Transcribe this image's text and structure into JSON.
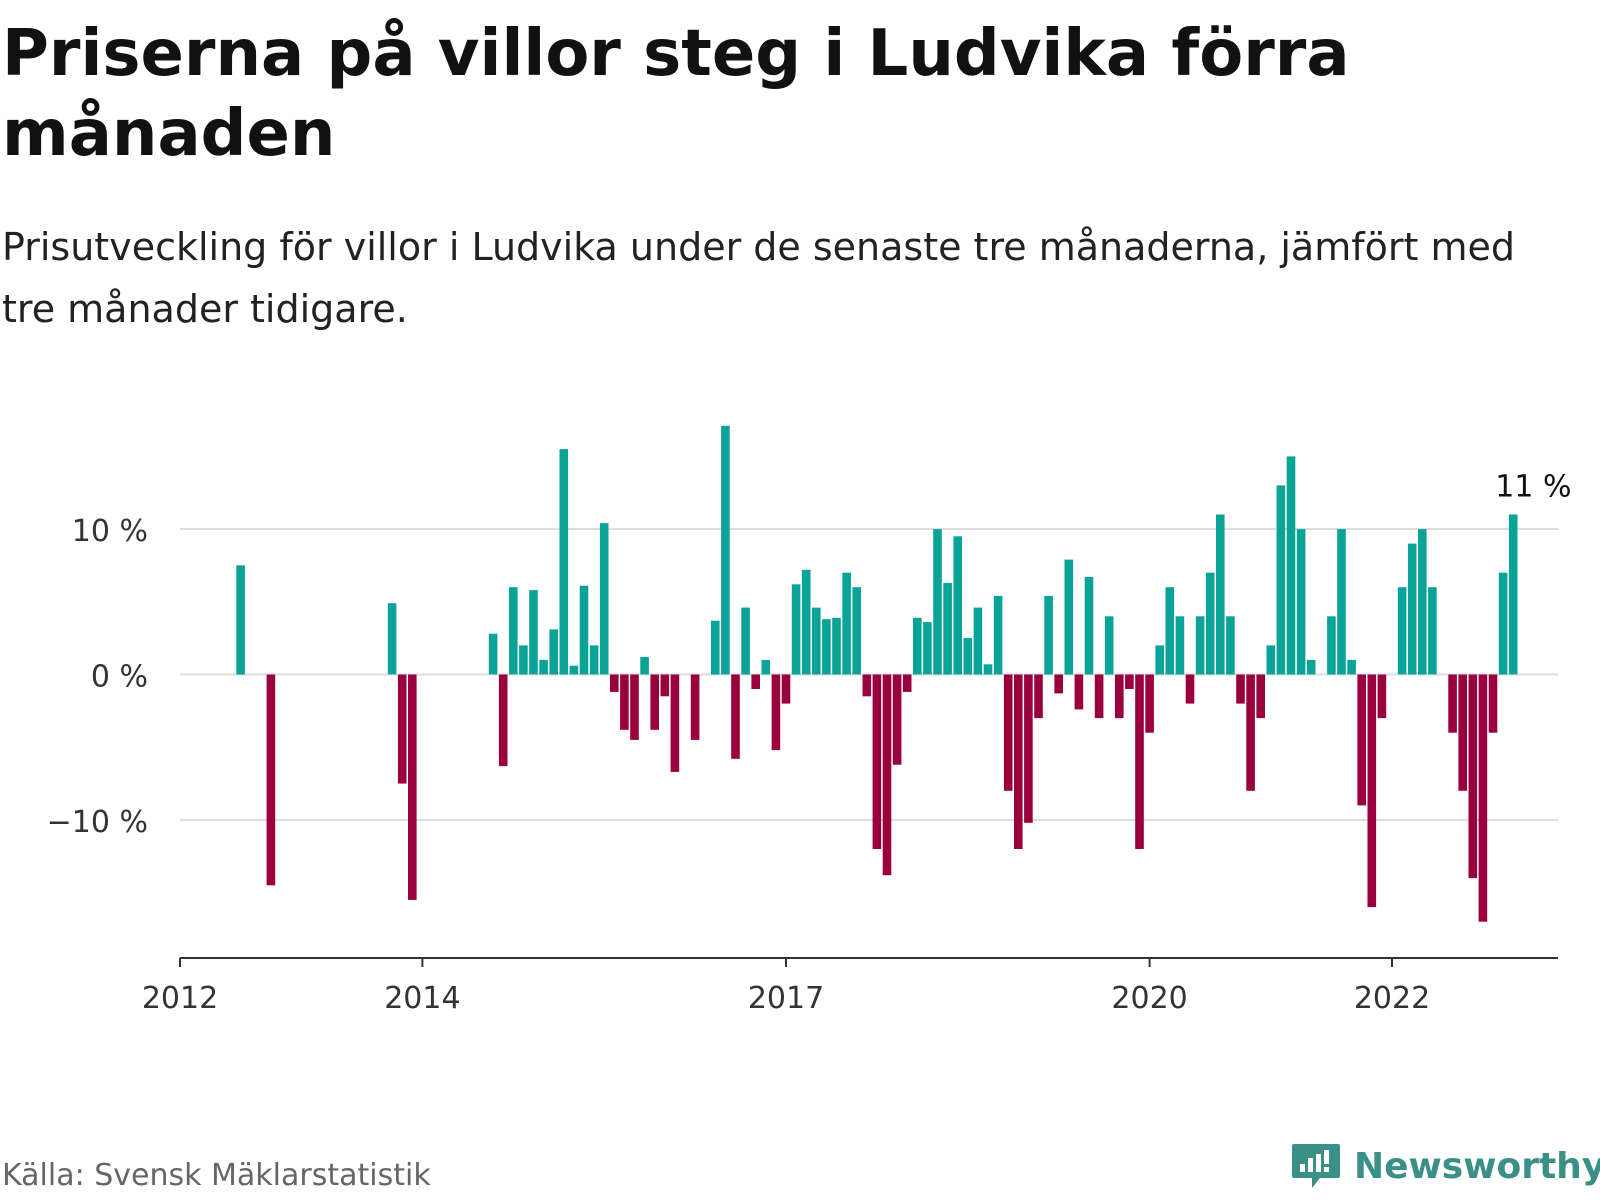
{
  "title": "Priserna på villor steg i Ludvika förra månaden",
  "subtitle": "Prisutveckling för villor i Ludvika under de senaste tre månaderna, jämfört med tre månader tidigare.",
  "source": "Källa: Svensk Mäklarstatistik",
  "brand": "Newsworthy",
  "colors": {
    "positive": "#0aa398",
    "negative": "#99003d",
    "grid": "#dddddd",
    "axis": "#333333",
    "brand": "#3a8f86"
  },
  "chart_data": {
    "type": "bar",
    "title": "Priserna på villor steg i Ludvika förra månaden",
    "subtitle": "Prisutveckling för villor i Ludvika under de senaste tre månaderna, jämfört med tre månader tidigare.",
    "xlabel": "",
    "ylabel": "",
    "unit": "%",
    "ylim": [
      -19.5,
      17.5
    ],
    "xlim": [
      "2012-01",
      "2023-06"
    ],
    "grid": true,
    "yticks": [
      {
        "value": 10,
        "label": "10 %"
      },
      {
        "value": 0,
        "label": "0 %"
      },
      {
        "value": -10,
        "label": "−10 %"
      }
    ],
    "xticks": [
      {
        "date": "2012-01",
        "label": "2012"
      },
      {
        "date": "2014-01",
        "label": "2014"
      },
      {
        "date": "2017-01",
        "label": "2017"
      },
      {
        "date": "2020-01",
        "label": "2020"
      },
      {
        "date": "2022-01",
        "label": "2022"
      }
    ],
    "annotations": [
      {
        "date": "2023-03",
        "value": 11,
        "text": "11 %"
      }
    ],
    "series": [
      {
        "values": [
          [
            "2012-07",
            7.5
          ],
          [
            "2012-10",
            -14.5
          ],
          [
            "2013-10",
            4.9
          ],
          [
            "2013-11",
            -7.5
          ],
          [
            "2013-12",
            -15.5
          ],
          [
            "2014-08",
            2.8
          ],
          [
            "2014-09",
            -6.3
          ],
          [
            "2014-10",
            6.0
          ],
          [
            "2014-11",
            2.0
          ],
          [
            "2014-12",
            5.8
          ],
          [
            "2015-01",
            1.0
          ],
          [
            "2015-02",
            3.1
          ],
          [
            "2015-03",
            15.5
          ],
          [
            "2015-04",
            0.6
          ],
          [
            "2015-05",
            6.1
          ],
          [
            "2015-06",
            2.0
          ],
          [
            "2015-07",
            10.4
          ],
          [
            "2015-08",
            -1.2
          ],
          [
            "2015-09",
            -3.8
          ],
          [
            "2015-10",
            -4.5
          ],
          [
            "2015-11",
            1.2
          ],
          [
            "2015-12",
            -3.8
          ],
          [
            "2016-01",
            -1.5
          ],
          [
            "2016-02",
            -6.7
          ],
          [
            "2016-04",
            -4.5
          ],
          [
            "2016-06",
            3.7
          ],
          [
            "2016-07",
            17.1
          ],
          [
            "2016-08",
            -5.8
          ],
          [
            "2016-09",
            4.6
          ],
          [
            "2016-10",
            -1.0
          ],
          [
            "2016-11",
            1.0
          ],
          [
            "2016-12",
            -5.2
          ],
          [
            "2017-01",
            -2.0
          ],
          [
            "2017-02",
            6.2
          ],
          [
            "2017-03",
            7.2
          ],
          [
            "2017-04",
            4.6
          ],
          [
            "2017-05",
            3.8
          ],
          [
            "2017-06",
            3.9
          ],
          [
            "2017-07",
            7.0
          ],
          [
            "2017-08",
            6.0
          ],
          [
            "2017-09",
            -1.5
          ],
          [
            "2017-10",
            -12.0
          ],
          [
            "2017-11",
            -13.8
          ],
          [
            "2017-12",
            -6.2
          ],
          [
            "2018-01",
            -1.2
          ],
          [
            "2018-02",
            3.9
          ],
          [
            "2018-03",
            3.6
          ],
          [
            "2018-04",
            10.0
          ],
          [
            "2018-05",
            6.3
          ],
          [
            "2018-06",
            9.5
          ],
          [
            "2018-07",
            2.5
          ],
          [
            "2018-08",
            4.6
          ],
          [
            "2018-09",
            0.7
          ],
          [
            "2018-10",
            5.4
          ],
          [
            "2018-11",
            -8.0
          ],
          [
            "2018-12",
            -12.0
          ],
          [
            "2019-01",
            -10.2
          ],
          [
            "2019-02",
            -3.0
          ],
          [
            "2019-03",
            5.4
          ],
          [
            "2019-04",
            -1.3
          ],
          [
            "2019-05",
            7.9
          ],
          [
            "2019-06",
            -2.4
          ],
          [
            "2019-07",
            6.7
          ],
          [
            "2019-08",
            -3.0
          ],
          [
            "2019-09",
            4.0
          ],
          [
            "2019-10",
            -3.0
          ],
          [
            "2019-11",
            -1.0
          ],
          [
            "2019-12",
            -12.0
          ],
          [
            "2020-01",
            -4.0
          ],
          [
            "2020-02",
            2.0
          ],
          [
            "2020-03",
            6.0
          ],
          [
            "2020-04",
            4.0
          ],
          [
            "2020-05",
            -2.0
          ],
          [
            "2020-06",
            4.0
          ],
          [
            "2020-07",
            7.0
          ],
          [
            "2020-08",
            11.0
          ],
          [
            "2020-09",
            4.0
          ],
          [
            "2020-10",
            -2.0
          ],
          [
            "2020-11",
            -8.0
          ],
          [
            "2020-12",
            -3.0
          ],
          [
            "2021-01",
            2.0
          ],
          [
            "2021-02",
            13.0
          ],
          [
            "2021-03",
            15.0
          ],
          [
            "2021-04",
            10.0
          ],
          [
            "2021-05",
            1.0
          ],
          [
            "2021-07",
            4.0
          ],
          [
            "2021-08",
            10.0
          ],
          [
            "2021-09",
            1.0
          ],
          [
            "2021-10",
            -9.0
          ],
          [
            "2021-11",
            -16.0
          ],
          [
            "2021-12",
            -3.0
          ],
          [
            "2022-02",
            6.0
          ],
          [
            "2022-03",
            9.0
          ],
          [
            "2022-04",
            10.0
          ],
          [
            "2022-05",
            6.0
          ],
          [
            "2022-07",
            -4.0
          ],
          [
            "2022-08",
            -8.0
          ],
          [
            "2022-09",
            -14.0
          ],
          [
            "2022-10",
            -17.0
          ],
          [
            "2022-11",
            -4.0
          ],
          [
            "2022-12",
            7.0
          ],
          [
            "2023-01",
            11.0
          ]
        ]
      }
    ]
  }
}
